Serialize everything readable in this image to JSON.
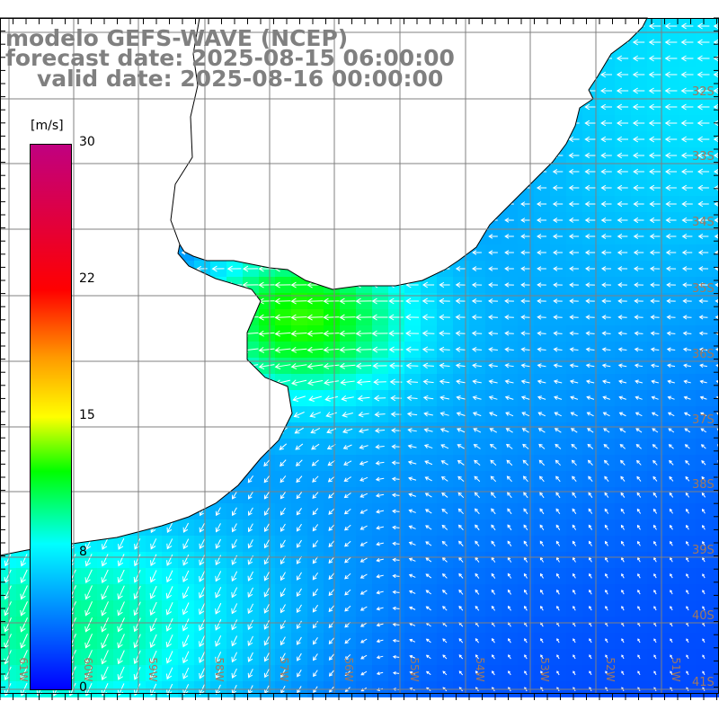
{
  "title": {
    "model": "modelo GEFS-WAVE (NCEP)",
    "forecast": "forecast date: 2025-08-15 06:00:00",
    "valid": "valid date: 2025-08-16 00:00:00"
  },
  "colorbar": {
    "unit": "[m/s]",
    "labels": [
      "30",
      "22",
      "15",
      "8",
      "0"
    ],
    "range": [
      0,
      30
    ]
  },
  "latitudes": [
    "32S",
    "33S",
    "34S",
    "35S",
    "36S",
    "37S",
    "38S",
    "39S",
    "40S",
    "41S"
  ],
  "longitudes": [
    "61W",
    "60W",
    "59W",
    "58W",
    "57W",
    "56W",
    "55W",
    "54W",
    "53W",
    "52W",
    "51W"
  ],
  "colors": {
    "grid": "#808080",
    "title": "#808080",
    "coast": "#000000",
    "arrow": "#ffffff"
  }
}
